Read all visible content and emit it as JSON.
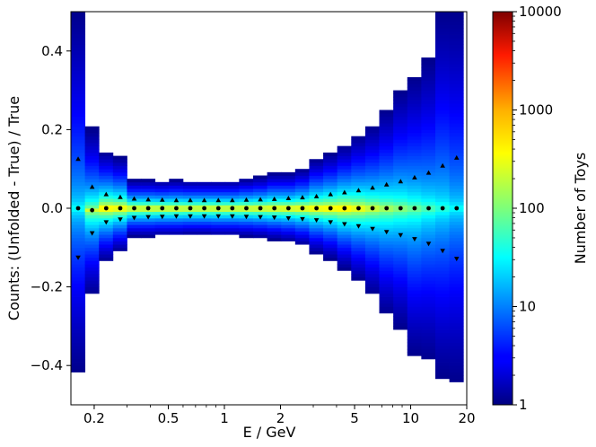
{
  "chart_data": {
    "type": "heatmap",
    "xlabel": "E / GeV",
    "ylabel": "Counts: (Unfolded - True) / True",
    "colorbar_label": "Number of Toys",
    "x_scale": "log",
    "xlim": [
      0.15,
      20
    ],
    "ylim": [
      -0.5,
      0.5
    ],
    "x_ticks": [
      {
        "value": 0.2,
        "label": "0.2"
      },
      {
        "value": 0.5,
        "label": "0.5"
      },
      {
        "value": 1,
        "label": "1"
      },
      {
        "value": 2,
        "label": "2"
      },
      {
        "value": 5,
        "label": "5"
      },
      {
        "value": 10,
        "label": "10"
      },
      {
        "value": 20,
        "label": "20"
      }
    ],
    "y_ticks": [
      {
        "value": 0.4,
        "label": "0.4"
      },
      {
        "value": 0.2,
        "label": "0.2"
      },
      {
        "value": 0.0,
        "label": "0.0"
      },
      {
        "value": -0.2,
        "label": "−0.2"
      },
      {
        "value": -0.4,
        "label": "−0.4"
      }
    ],
    "colorbar_scale": "log",
    "colorbar_range": [
      1,
      10000
    ],
    "colorbar_ticks": [
      {
        "value": 10000,
        "label": "10000"
      },
      {
        "value": 1000,
        "label": "1000"
      },
      {
        "value": 100,
        "label": "100"
      },
      {
        "value": 10,
        "label": "10"
      },
      {
        "value": 1,
        "label": "1"
      }
    ],
    "colormap": "jet",
    "grid": false,
    "bin_edges": [
      0.15,
      0.1784,
      0.2121,
      0.2522,
      0.2999,
      0.3567,
      0.4241,
      0.5043,
      0.5997,
      0.7132,
      0.8481,
      1.0085,
      1.1993,
      1.4262,
      1.696,
      2.0168,
      2.3983,
      2.852,
      3.3915,
      4.0331,
      4.796,
      5.7033,
      6.7822,
      8.0652,
      9.591,
      11.405,
      13.563,
      16.128,
      19.179
    ],
    "bins": [
      {
        "center": 0.164,
        "median": 0.0,
        "upper": 0.125,
        "lower": -0.125,
        "spread": 0.125,
        "extent_top": 0.5,
        "extent_bottom": -0.415
      },
      {
        "center": 0.195,
        "median": -0.005,
        "upper": 0.054,
        "lower": -0.063,
        "spread": 0.06,
        "extent_top": 0.205,
        "extent_bottom": -0.215
      },
      {
        "center": 0.232,
        "median": 0.0,
        "upper": 0.035,
        "lower": -0.035,
        "spread": 0.035,
        "extent_top": 0.145,
        "extent_bottom": -0.135
      },
      {
        "center": 0.276,
        "median": 0.0,
        "upper": 0.028,
        "lower": -0.028,
        "spread": 0.028,
        "extent_top": 0.13,
        "extent_bottom": -0.11
      },
      {
        "center": 0.328,
        "median": 0.0,
        "upper": 0.024,
        "lower": -0.024,
        "spread": 0.024,
        "extent_top": 0.072,
        "extent_bottom": -0.072
      },
      {
        "center": 0.39,
        "median": 0.0,
        "upper": 0.022,
        "lower": -0.022,
        "spread": 0.022,
        "extent_top": 0.072,
        "extent_bottom": -0.072
      },
      {
        "center": 0.464,
        "median": 0.0,
        "upper": 0.021,
        "lower": -0.021,
        "spread": 0.021,
        "extent_top": 0.07,
        "extent_bottom": -0.07
      },
      {
        "center": 0.552,
        "median": 0.0,
        "upper": 0.02,
        "lower": -0.02,
        "spread": 0.02,
        "extent_top": 0.072,
        "extent_bottom": -0.07
      },
      {
        "center": 0.656,
        "median": 0.0,
        "upper": 0.02,
        "lower": -0.02,
        "spread": 0.02,
        "extent_top": 0.07,
        "extent_bottom": -0.068
      },
      {
        "center": 0.78,
        "median": 0.0,
        "upper": 0.02,
        "lower": -0.02,
        "spread": 0.02,
        "extent_top": 0.07,
        "extent_bottom": -0.068
      },
      {
        "center": 0.928,
        "median": 0.0,
        "upper": 0.02,
        "lower": -0.02,
        "spread": 0.02,
        "extent_top": 0.07,
        "extent_bottom": -0.07
      },
      {
        "center": 1.103,
        "median": 0.0,
        "upper": 0.02,
        "lower": -0.02,
        "spread": 0.02,
        "extent_top": 0.07,
        "extent_bottom": -0.07
      },
      {
        "center": 1.312,
        "median": 0.0,
        "upper": 0.021,
        "lower": -0.021,
        "spread": 0.021,
        "extent_top": 0.075,
        "extent_bottom": -0.072
      },
      {
        "center": 1.56,
        "median": 0.0,
        "upper": 0.022,
        "lower": -0.022,
        "spread": 0.022,
        "extent_top": 0.08,
        "extent_bottom": -0.075
      },
      {
        "center": 1.855,
        "median": 0.0,
        "upper": 0.023,
        "lower": -0.023,
        "spread": 0.023,
        "extent_top": 0.09,
        "extent_bottom": -0.08
      },
      {
        "center": 2.207,
        "median": 0.0,
        "upper": 0.025,
        "lower": -0.025,
        "spread": 0.025,
        "extent_top": 0.09,
        "extent_bottom": -0.085
      },
      {
        "center": 2.625,
        "median": 0.0,
        "upper": 0.027,
        "lower": -0.027,
        "spread": 0.027,
        "extent_top": 0.1,
        "extent_bottom": -0.095
      },
      {
        "center": 3.122,
        "median": 0.0,
        "upper": 0.03,
        "lower": -0.03,
        "spread": 0.03,
        "extent_top": 0.125,
        "extent_bottom": -0.115
      },
      {
        "center": 3.713,
        "median": 0.0,
        "upper": 0.035,
        "lower": -0.035,
        "spread": 0.035,
        "extent_top": 0.14,
        "extent_bottom": -0.13
      },
      {
        "center": 4.415,
        "median": 0.0,
        "upper": 0.04,
        "lower": -0.04,
        "spread": 0.04,
        "extent_top": 0.16,
        "extent_bottom": -0.155
      },
      {
        "center": 5.25,
        "median": 0.0,
        "upper": 0.045,
        "lower": -0.045,
        "spread": 0.045,
        "extent_top": 0.185,
        "extent_bottom": -0.185
      },
      {
        "center": 6.243,
        "median": 0.0,
        "upper": 0.052,
        "lower": -0.052,
        "spread": 0.052,
        "extent_top": 0.21,
        "extent_bottom": -0.22
      },
      {
        "center": 7.424,
        "median": 0.0,
        "upper": 0.06,
        "lower": -0.06,
        "spread": 0.06,
        "extent_top": 0.25,
        "extent_bottom": -0.27
      },
      {
        "center": 8.828,
        "median": 0.0,
        "upper": 0.068,
        "lower": -0.068,
        "spread": 0.068,
        "extent_top": 0.3,
        "extent_bottom": -0.305
      },
      {
        "center": 10.498,
        "median": 0.0,
        "upper": 0.078,
        "lower": -0.078,
        "spread": 0.078,
        "extent_top": 0.335,
        "extent_bottom": -0.375
      },
      {
        "center": 12.484,
        "median": 0.0,
        "upper": 0.09,
        "lower": -0.09,
        "spread": 0.09,
        "extent_top": 0.38,
        "extent_bottom": -0.385
      },
      {
        "center": 14.845,
        "median": 0.0,
        "upper": 0.108,
        "lower": -0.108,
        "spread": 0.108,
        "extent_top": 0.5,
        "extent_bottom": -0.43
      },
      {
        "center": 17.653,
        "median": 0.0,
        "upper": 0.128,
        "lower": -0.128,
        "spread": 0.128,
        "extent_top": 0.5,
        "extent_bottom": -0.44
      }
    ]
  }
}
